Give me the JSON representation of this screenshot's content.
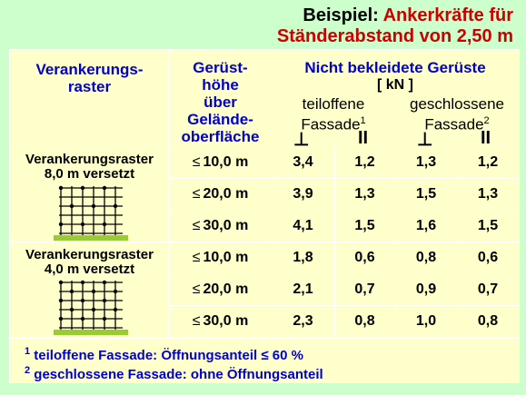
{
  "title": {
    "label": "Beispiel:",
    "line1_red": "Ankerkräfte für",
    "line2": "Ständerabstand von 2,50 m"
  },
  "header": {
    "col1": [
      "Verankerungs-",
      "raster"
    ],
    "col2": [
      "Gerüst-",
      "höhe",
      "über",
      "Gelände-",
      "oberfläche"
    ],
    "group": "Nicht bekleidete Gerüste",
    "unit": "[ kN ]",
    "sub1": "teiloffene",
    "sub1b": "Fassade",
    "sub1_sup": "1",
    "sub2": "geschlossene",
    "sub2b": "Fassade",
    "sub2_sup": "2",
    "perp": "⊥",
    "par": "II"
  },
  "le_symbol": "≤",
  "groups": [
    {
      "label1": "Verankerungsraster",
      "label2": "8,0 m versetzt",
      "rows": [
        {
          "h": "10,0 m",
          "v": [
            "3,4",
            "1,2",
            "1,3",
            "1,2"
          ]
        },
        {
          "h": "20,0 m",
          "v": [
            "3,9",
            "1,3",
            "1,5",
            "1,3"
          ]
        },
        {
          "h": "30,0 m",
          "v": [
            "4,1",
            "1,5",
            "1,6",
            "1,5"
          ]
        }
      ]
    },
    {
      "label1": "Verankerungsraster",
      "label2": "4,0 m versetzt",
      "rows": [
        {
          "h": "10,0 m",
          "v": [
            "1,8",
            "0,6",
            "0,8",
            "0,6"
          ]
        },
        {
          "h": "20,0 m",
          "v": [
            "2,1",
            "0,7",
            "0,9",
            "0,7"
          ]
        },
        {
          "h": "30,0 m",
          "v": [
            "2,3",
            "0,8",
            "1,0",
            "0,8"
          ]
        }
      ]
    }
  ],
  "footnotes": {
    "n1_num": "1",
    "n1": "teiloffene Fassade: Öffnungsanteil ≤ 60 %",
    "n2_num": "2",
    "n2": "geschlossene Fassade: ohne Öffnungsanteil"
  },
  "colors": {
    "background": "#ccffcc",
    "table": "#ffffcc",
    "accent_red": "#cc0000",
    "header_blue": "#0000cc"
  }
}
